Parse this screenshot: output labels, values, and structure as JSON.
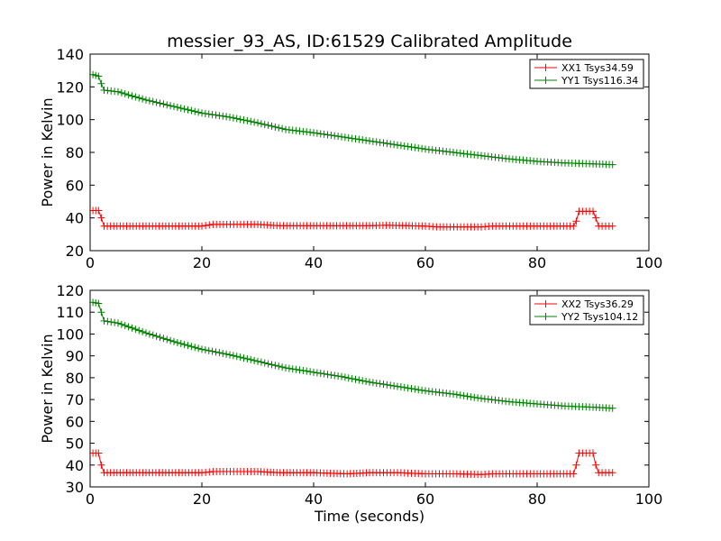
{
  "title": "messier_93_AS, ID:61529 Calibrated Amplitude",
  "colors": {
    "xx": "#ff0000",
    "yy": "#008000"
  },
  "chart_data": [
    {
      "type": "line",
      "xlabel": "",
      "ylabel": "Power in Kelvin",
      "xlim": [
        0,
        100
      ],
      "ylim": [
        20,
        140
      ],
      "xticks": [
        0,
        20,
        40,
        60,
        80,
        100
      ],
      "yticks": [
        20,
        40,
        60,
        80,
        100,
        120,
        140
      ],
      "legend_position": "top-right",
      "grid": false,
      "series": [
        {
          "name": "XX1 Tsys34.59",
          "color": "#ff0000",
          "points": [
            [
              0.5,
              44.5
            ],
            [
              1.5,
              44.5
            ],
            [
              2,
              40
            ],
            [
              2.5,
              35
            ],
            [
              10,
              35
            ],
            [
              20,
              35
            ],
            [
              22,
              36
            ],
            [
              30,
              36
            ],
            [
              34,
              35.2
            ],
            [
              40,
              35.2
            ],
            [
              50,
              35.2
            ],
            [
              53,
              35.5
            ],
            [
              60,
              35
            ],
            [
              62,
              34.5
            ],
            [
              70,
              34.5
            ],
            [
              72,
              35
            ],
            [
              80,
              35
            ],
            [
              86.5,
              35
            ],
            [
              87,
              38
            ],
            [
              87.5,
              44
            ],
            [
              90,
              44
            ],
            [
              90.5,
              40
            ],
            [
              91,
              35
            ],
            [
              93.5,
              35
            ]
          ]
        },
        {
          "name": "YY1 Tsys116.34",
          "color": "#008000",
          "points": [
            [
              0.5,
              127.5
            ],
            [
              1.5,
              126.5
            ],
            [
              2,
              122
            ],
            [
              2.5,
              118
            ],
            [
              5,
              117
            ],
            [
              10,
              112
            ],
            [
              15,
              108
            ],
            [
              20,
              104
            ],
            [
              25,
              101.5
            ],
            [
              30,
              98
            ],
            [
              35,
              94
            ],
            [
              40,
              92
            ],
            [
              45,
              89.5
            ],
            [
              50,
              87
            ],
            [
              55,
              84.5
            ],
            [
              60,
              82
            ],
            [
              65,
              80
            ],
            [
              70,
              78
            ],
            [
              75,
              76
            ],
            [
              80,
              74.5
            ],
            [
              85,
              73.5
            ],
            [
              90,
              73
            ],
            [
              93.5,
              72.5
            ]
          ]
        }
      ]
    },
    {
      "type": "line",
      "xlabel": "Time (seconds)",
      "ylabel": "Power in Kelvin",
      "xlim": [
        0,
        100
      ],
      "ylim": [
        30,
        120
      ],
      "xticks": [
        0,
        20,
        40,
        60,
        80,
        100
      ],
      "yticks": [
        30,
        40,
        50,
        60,
        70,
        80,
        90,
        100,
        110,
        120
      ],
      "legend_position": "top-right",
      "grid": false,
      "series": [
        {
          "name": "XX2 Tsys36.29",
          "color": "#ff0000",
          "points": [
            [
              0.5,
              45.5
            ],
            [
              1.5,
              45.5
            ],
            [
              2,
              40
            ],
            [
              2.5,
              36.5
            ],
            [
              10,
              36.5
            ],
            [
              20,
              36.5
            ],
            [
              22,
              37
            ],
            [
              30,
              37
            ],
            [
              34,
              36.5
            ],
            [
              40,
              36.5
            ],
            [
              46,
              36
            ],
            [
              50,
              36.5
            ],
            [
              55,
              36.5
            ],
            [
              60,
              36
            ],
            [
              65,
              36
            ],
            [
              70,
              35.7
            ],
            [
              72,
              36
            ],
            [
              80,
              36
            ],
            [
              86.5,
              36
            ],
            [
              87,
              40
            ],
            [
              87.5,
              45.5
            ],
            [
              90,
              45.5
            ],
            [
              90.5,
              40
            ],
            [
              91,
              36.5
            ],
            [
              93.5,
              36.5
            ]
          ]
        },
        {
          "name": "YY2 Tsys104.12",
          "color": "#008000",
          "points": [
            [
              0.5,
              114.5
            ],
            [
              1.5,
              114
            ],
            [
              2,
              110
            ],
            [
              2.5,
              106
            ],
            [
              5,
              105
            ],
            [
              10,
              100.5
            ],
            [
              15,
              96.5
            ],
            [
              20,
              93
            ],
            [
              25,
              90.5
            ],
            [
              30,
              87.5
            ],
            [
              35,
              84.5
            ],
            [
              40,
              82.5
            ],
            [
              45,
              80.5
            ],
            [
              50,
              78
            ],
            [
              55,
              76
            ],
            [
              60,
              74
            ],
            [
              65,
              72.5
            ],
            [
              70,
              70.5
            ],
            [
              75,
              69
            ],
            [
              80,
              68
            ],
            [
              85,
              67
            ],
            [
              90,
              66.5
            ],
            [
              93.5,
              66
            ]
          ]
        }
      ]
    }
  ]
}
